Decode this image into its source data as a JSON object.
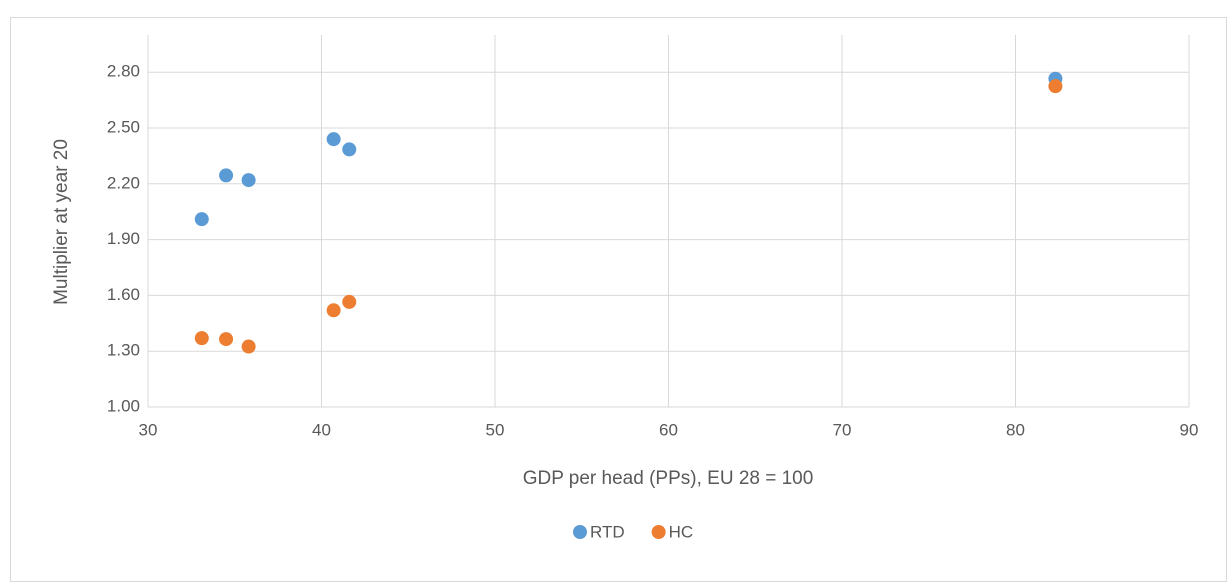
{
  "chart_data": {
    "type": "scatter",
    "xlabel": "GDP per head (PPs), EU 28 = 100",
    "ylabel": "Multiplier at year 20",
    "xlim": [
      30,
      90
    ],
    "xticks": [
      30,
      40,
      50,
      60,
      70,
      80,
      90
    ],
    "ylim": [
      1,
      3.0
    ],
    "yticks": [
      {
        "value": 1,
        "label": "1.00"
      },
      {
        "value": 1.3,
        "label": "1.30"
      },
      {
        "value": 1.6,
        "label": "1.60"
      },
      {
        "value": 1.9,
        "label": "1.90"
      },
      {
        "value": 2.2,
        "label": "2.20"
      },
      {
        "value": 2.5,
        "label": "2.50"
      },
      {
        "value": 2.8,
        "label": "2.80"
      }
    ],
    "grid": true,
    "legend": "bottom",
    "series": [
      {
        "name": "RTD",
        "color": "#5b9bd5",
        "x": [
          33.1,
          34.5,
          35.8,
          40.7,
          41.6,
          82.3
        ],
        "values": [
          2.01,
          2.245,
          2.22,
          2.44,
          2.385,
          2.765
        ]
      },
      {
        "name": "HC",
        "color": "#ed7d31",
        "x": [
          33.1,
          34.5,
          35.8,
          40.7,
          41.6,
          82.3
        ],
        "values": [
          1.37,
          1.365,
          1.325,
          1.52,
          1.565,
          2.725
        ]
      }
    ]
  }
}
